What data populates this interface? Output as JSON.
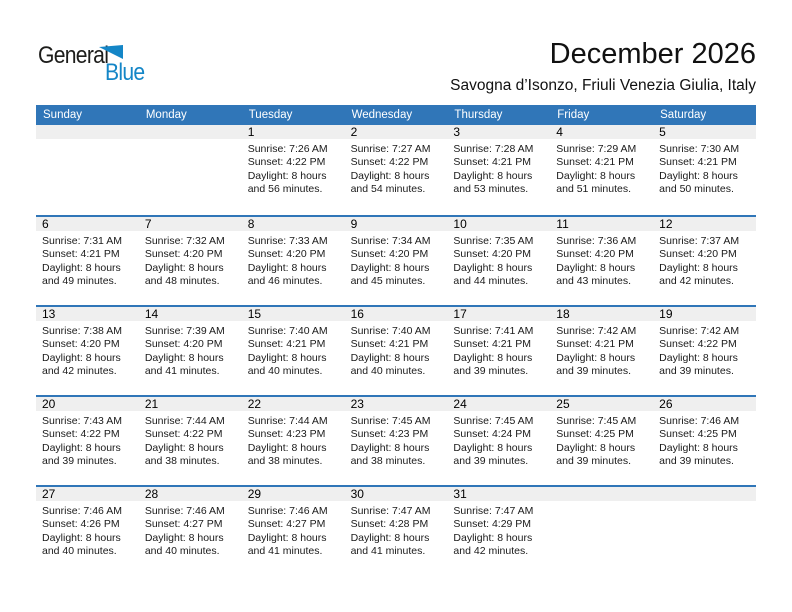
{
  "logo": {
    "text_top": "General",
    "text_bottom": "Blue",
    "triangle_icon": "blue-triangle"
  },
  "header": {
    "title": "December 2026",
    "subtitle": "Savogna d’Isonzo, Friuli Venezia Giulia, Italy"
  },
  "colors": {
    "accent_blue": "#3076b8",
    "logo_blue": "#1486c7",
    "band_gray": "#efefef",
    "text": "#1a1a1a"
  },
  "weekday_headers": [
    "Sunday",
    "Monday",
    "Tuesday",
    "Wednesday",
    "Thursday",
    "Friday",
    "Saturday"
  ],
  "weeks": [
    {
      "days": [
        {
          "date": ""
        },
        {
          "date": ""
        },
        {
          "date": "1",
          "lines": [
            "Sunrise: 7:26 AM",
            "Sunset: 4:22 PM",
            "Daylight: 8 hours and 56 minutes."
          ]
        },
        {
          "date": "2",
          "lines": [
            "Sunrise: 7:27 AM",
            "Sunset: 4:22 PM",
            "Daylight: 8 hours and 54 minutes."
          ]
        },
        {
          "date": "3",
          "lines": [
            "Sunrise: 7:28 AM",
            "Sunset: 4:21 PM",
            "Daylight: 8 hours and 53 minutes."
          ]
        },
        {
          "date": "4",
          "lines": [
            "Sunrise: 7:29 AM",
            "Sunset: 4:21 PM",
            "Daylight: 8 hours and 51 minutes."
          ]
        },
        {
          "date": "5",
          "lines": [
            "Sunrise: 7:30 AM",
            "Sunset: 4:21 PM",
            "Daylight: 8 hours and 50 minutes."
          ]
        }
      ]
    },
    {
      "days": [
        {
          "date": "6",
          "lines": [
            "Sunrise: 7:31 AM",
            "Sunset: 4:21 PM",
            "Daylight: 8 hours and 49 minutes."
          ]
        },
        {
          "date": "7",
          "lines": [
            "Sunrise: 7:32 AM",
            "Sunset: 4:20 PM",
            "Daylight: 8 hours and 48 minutes."
          ]
        },
        {
          "date": "8",
          "lines": [
            "Sunrise: 7:33 AM",
            "Sunset: 4:20 PM",
            "Daylight: 8 hours and 46 minutes."
          ]
        },
        {
          "date": "9",
          "lines": [
            "Sunrise: 7:34 AM",
            "Sunset: 4:20 PM",
            "Daylight: 8 hours and 45 minutes."
          ]
        },
        {
          "date": "10",
          "lines": [
            "Sunrise: 7:35 AM",
            "Sunset: 4:20 PM",
            "Daylight: 8 hours and 44 minutes."
          ]
        },
        {
          "date": "11",
          "lines": [
            "Sunrise: 7:36 AM",
            "Sunset: 4:20 PM",
            "Daylight: 8 hours and 43 minutes."
          ]
        },
        {
          "date": "12",
          "lines": [
            "Sunrise: 7:37 AM",
            "Sunset: 4:20 PM",
            "Daylight: 8 hours and 42 minutes."
          ]
        }
      ]
    },
    {
      "days": [
        {
          "date": "13",
          "lines": [
            "Sunrise: 7:38 AM",
            "Sunset: 4:20 PM",
            "Daylight: 8 hours and 42 minutes."
          ]
        },
        {
          "date": "14",
          "lines": [
            "Sunrise: 7:39 AM",
            "Sunset: 4:20 PM",
            "Daylight: 8 hours and 41 minutes."
          ]
        },
        {
          "date": "15",
          "lines": [
            "Sunrise: 7:40 AM",
            "Sunset: 4:21 PM",
            "Daylight: 8 hours and 40 minutes."
          ]
        },
        {
          "date": "16",
          "lines": [
            "Sunrise: 7:40 AM",
            "Sunset: 4:21 PM",
            "Daylight: 8 hours and 40 minutes."
          ]
        },
        {
          "date": "17",
          "lines": [
            "Sunrise: 7:41 AM",
            "Sunset: 4:21 PM",
            "Daylight: 8 hours and 39 minutes."
          ]
        },
        {
          "date": "18",
          "lines": [
            "Sunrise: 7:42 AM",
            "Sunset: 4:21 PM",
            "Daylight: 8 hours and 39 minutes."
          ]
        },
        {
          "date": "19",
          "lines": [
            "Sunrise: 7:42 AM",
            "Sunset: 4:22 PM",
            "Daylight: 8 hours and 39 minutes."
          ]
        }
      ]
    },
    {
      "days": [
        {
          "date": "20",
          "lines": [
            "Sunrise: 7:43 AM",
            "Sunset: 4:22 PM",
            "Daylight: 8 hours and 39 minutes."
          ]
        },
        {
          "date": "21",
          "lines": [
            "Sunrise: 7:44 AM",
            "Sunset: 4:22 PM",
            "Daylight: 8 hours and 38 minutes."
          ]
        },
        {
          "date": "22",
          "lines": [
            "Sunrise: 7:44 AM",
            "Sunset: 4:23 PM",
            "Daylight: 8 hours and 38 minutes."
          ]
        },
        {
          "date": "23",
          "lines": [
            "Sunrise: 7:45 AM",
            "Sunset: 4:23 PM",
            "Daylight: 8 hours and 38 minutes."
          ]
        },
        {
          "date": "24",
          "lines": [
            "Sunrise: 7:45 AM",
            "Sunset: 4:24 PM",
            "Daylight: 8 hours and 39 minutes."
          ]
        },
        {
          "date": "25",
          "lines": [
            "Sunrise: 7:45 AM",
            "Sunset: 4:25 PM",
            "Daylight: 8 hours and 39 minutes."
          ]
        },
        {
          "date": "26",
          "lines": [
            "Sunrise: 7:46 AM",
            "Sunset: 4:25 PM",
            "Daylight: 8 hours and 39 minutes."
          ]
        }
      ]
    },
    {
      "days": [
        {
          "date": "27",
          "lines": [
            "Sunrise: 7:46 AM",
            "Sunset: 4:26 PM",
            "Daylight: 8 hours and 40 minutes."
          ]
        },
        {
          "date": "28",
          "lines": [
            "Sunrise: 7:46 AM",
            "Sunset: 4:27 PM",
            "Daylight: 8 hours and 40 minutes."
          ]
        },
        {
          "date": "29",
          "lines": [
            "Sunrise: 7:46 AM",
            "Sunset: 4:27 PM",
            "Daylight: 8 hours and 41 minutes."
          ]
        },
        {
          "date": "30",
          "lines": [
            "Sunrise: 7:47 AM",
            "Sunset: 4:28 PM",
            "Daylight: 8 hours and 41 minutes."
          ]
        },
        {
          "date": "31",
          "lines": [
            "Sunrise: 7:47 AM",
            "Sunset: 4:29 PM",
            "Daylight: 8 hours and 42 minutes."
          ]
        },
        {
          "date": ""
        },
        {
          "date": ""
        }
      ]
    }
  ]
}
